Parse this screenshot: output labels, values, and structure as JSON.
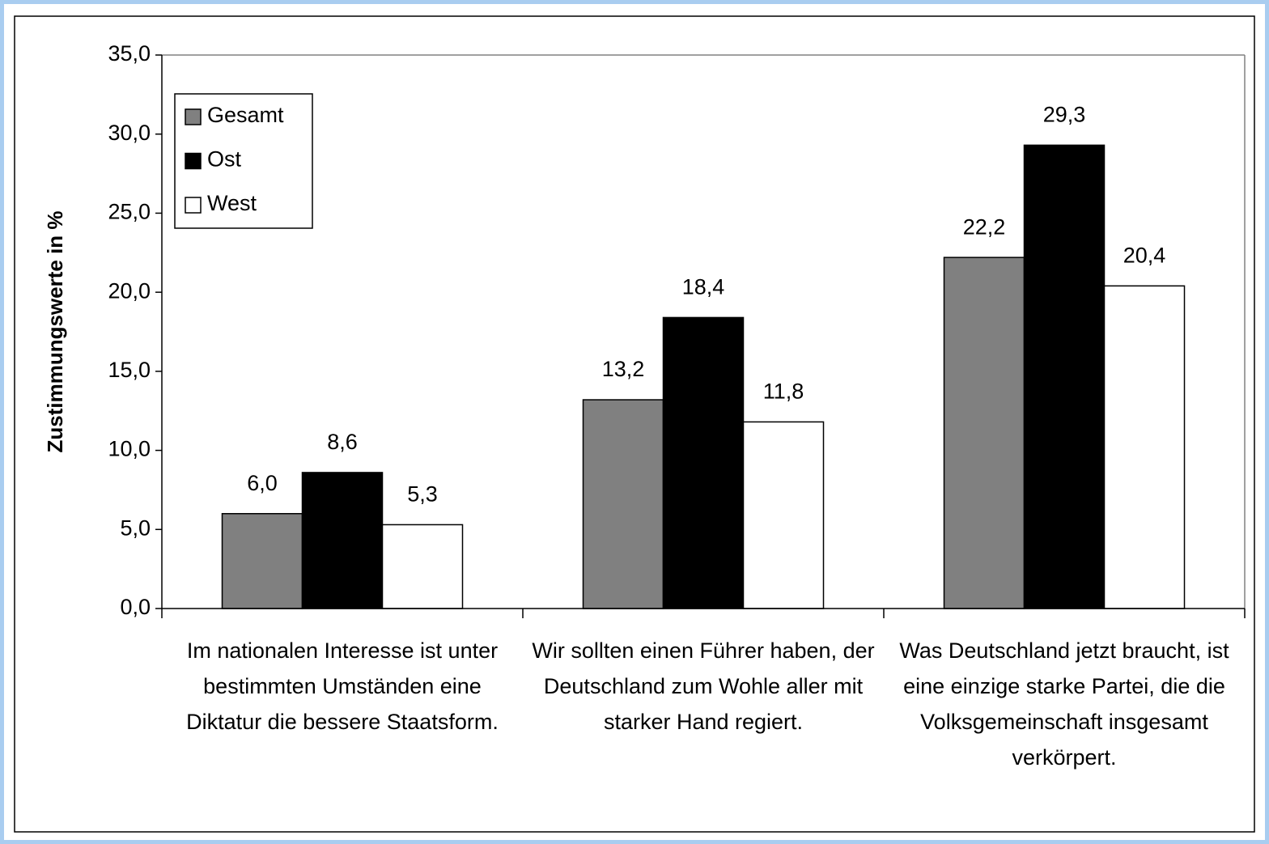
{
  "chart_data": {
    "type": "bar",
    "y_axis_label": "Zustimmungswerte in %",
    "categories": [
      "Im nationalen Interesse ist unter bestimmten Umständen eine Diktatur die bessere Staatsform.",
      "Wir sollten einen Führer haben, der Deutschland zum Wohle aller mit starker Hand regiert.",
      "Was Deutschland jetzt braucht, ist eine einzige starke Partei, die die Volksgemeinschaft insgesamt verkörpert."
    ],
    "series": [
      {
        "name": "Gesamt",
        "color": "#808080",
        "values": [
          6.0,
          13.2,
          22.2
        ],
        "value_labels": [
          "6,0",
          "13,2",
          "22,2"
        ]
      },
      {
        "name": "Ost",
        "color": "#000000",
        "values": [
          8.6,
          18.4,
          29.3
        ],
        "value_labels": [
          "8,6",
          "18,4",
          "29,3"
        ]
      },
      {
        "name": "West",
        "color": "#ffffff",
        "values": [
          5.3,
          11.8,
          20.4
        ],
        "value_labels": [
          "5,3",
          "11,8",
          "20,4"
        ]
      }
    ],
    "ylim": [
      0,
      35
    ],
    "yticks": [
      {
        "value": 0,
        "label": "0,0"
      },
      {
        "value": 5,
        "label": "5,0"
      },
      {
        "value": 10,
        "label": "10,0"
      },
      {
        "value": 15,
        "label": "15,0"
      },
      {
        "value": 20,
        "label": "20,0"
      },
      {
        "value": 25,
        "label": "25,0"
      },
      {
        "value": 30,
        "label": "30,0"
      },
      {
        "value": 35,
        "label": "35,0"
      }
    ],
    "grid": false,
    "legend": "upper left"
  }
}
